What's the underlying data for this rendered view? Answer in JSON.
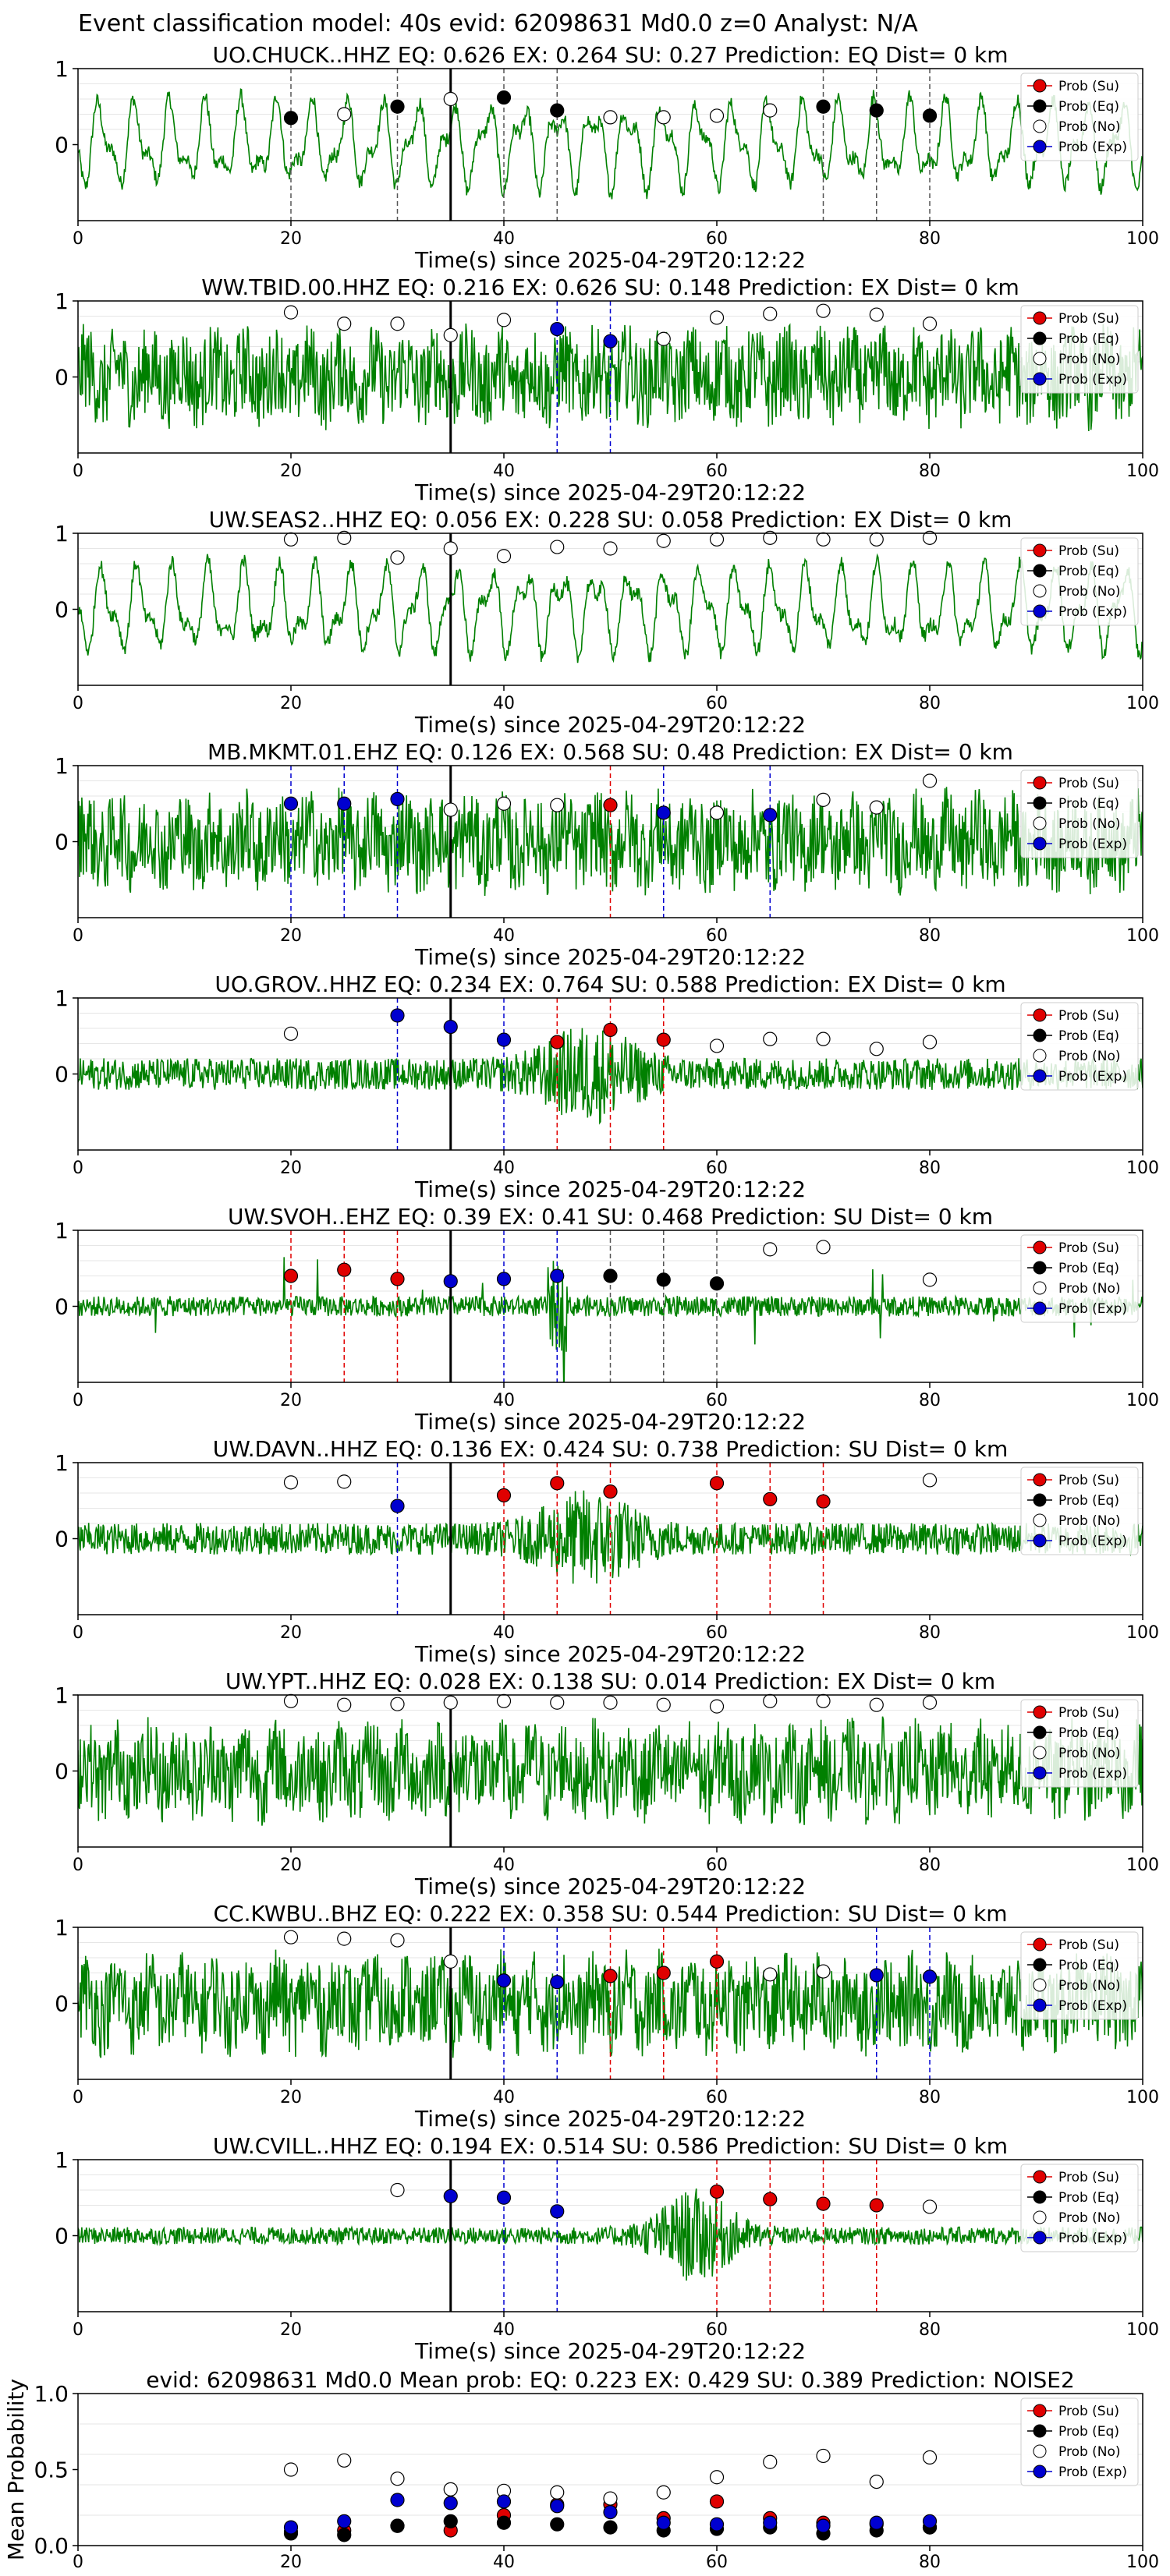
{
  "figure_title": "Event classification model: 40s evid: 62098631 Md0.0 z=0 Analyst: N/A",
  "colors": {
    "waveform": "#008000",
    "su": "#e00000",
    "eq": "#000000",
    "no": "#ffffff",
    "exp": "#0000d0",
    "pick_line": "#000000"
  },
  "legend": [
    "Prob (Su)",
    "Prob (Eq)",
    "Prob (No)",
    "Prob (Exp)"
  ],
  "chart_data": [
    {
      "type": "line",
      "title": "UO.CHUCK..HHZ   EQ: 0.626  EX: 0.264  SU: 0.27   Prediction: EQ    Dist= 0 km",
      "xlabel": "Time(s) since 2025-04-29T20:12:22",
      "xlim": [
        0,
        100
      ],
      "ylim": [
        -1,
        1
      ],
      "xticks": [
        "0",
        "20",
        "40",
        "60",
        "80",
        "100"
      ],
      "yticks": [
        "1",
        "0"
      ],
      "pick_time": 35,
      "waveform_style": "long-period",
      "points": [
        {
          "t": 20,
          "p": 0.35,
          "c": "eq"
        },
        {
          "t": 25,
          "p": 0.4,
          "c": "no"
        },
        {
          "t": 30,
          "p": 0.5,
          "c": "eq"
        },
        {
          "t": 35,
          "p": 0.6,
          "c": "no"
        },
        {
          "t": 40,
          "p": 0.62,
          "c": "eq"
        },
        {
          "t": 45,
          "p": 0.45,
          "c": "eq"
        },
        {
          "t": 50,
          "p": 0.36,
          "c": "no"
        },
        {
          "t": 55,
          "p": 0.36,
          "c": "no"
        },
        {
          "t": 60,
          "p": 0.38,
          "c": "no"
        },
        {
          "t": 65,
          "p": 0.45,
          "c": "no"
        },
        {
          "t": 70,
          "p": 0.5,
          "c": "eq"
        },
        {
          "t": 75,
          "p": 0.45,
          "c": "eq"
        },
        {
          "t": 80,
          "p": 0.38,
          "c": "eq"
        }
      ]
    },
    {
      "type": "line",
      "title": "WW.TBID.00.HHZ   EQ: 0.216  EX: 0.626  SU: 0.148   Prediction: EX    Dist= 0 km",
      "xlabel": "Time(s) since 2025-04-29T20:12:22",
      "xlim": [
        0,
        100
      ],
      "ylim": [
        -1,
        1
      ],
      "xticks": [
        "0",
        "20",
        "40",
        "60",
        "80",
        "100"
      ],
      "yticks": [
        "1",
        "0"
      ],
      "pick_time": 35,
      "waveform_style": "noisy",
      "points": [
        {
          "t": 20,
          "p": 0.85,
          "c": "no"
        },
        {
          "t": 25,
          "p": 0.7,
          "c": "no"
        },
        {
          "t": 30,
          "p": 0.7,
          "c": "no"
        },
        {
          "t": 35,
          "p": 0.55,
          "c": "no"
        },
        {
          "t": 40,
          "p": 0.75,
          "c": "no"
        },
        {
          "t": 45,
          "p": 0.63,
          "c": "exp"
        },
        {
          "t": 50,
          "p": 0.47,
          "c": "exp"
        },
        {
          "t": 55,
          "p": 0.5,
          "c": "no"
        },
        {
          "t": 60,
          "p": 0.78,
          "c": "no"
        },
        {
          "t": 65,
          "p": 0.83,
          "c": "no"
        },
        {
          "t": 70,
          "p": 0.87,
          "c": "no"
        },
        {
          "t": 75,
          "p": 0.82,
          "c": "no"
        },
        {
          "t": 80,
          "p": 0.7,
          "c": "no"
        }
      ]
    },
    {
      "type": "line",
      "title": "UW.SEAS2..HHZ   EQ: 0.056  EX: 0.228  SU: 0.058   Prediction: EX    Dist= 0 km",
      "xlabel": "Time(s) since 2025-04-29T20:12:22",
      "xlim": [
        0,
        100
      ],
      "ylim": [
        -1,
        1
      ],
      "xticks": [
        "0",
        "20",
        "40",
        "60",
        "80",
        "100"
      ],
      "yticks": [
        "1",
        "0"
      ],
      "pick_time": 35,
      "waveform_style": "long-period",
      "points": [
        {
          "t": 20,
          "p": 0.92,
          "c": "no"
        },
        {
          "t": 25,
          "p": 0.94,
          "c": "no"
        },
        {
          "t": 30,
          "p": 0.68,
          "c": "no"
        },
        {
          "t": 35,
          "p": 0.8,
          "c": "no"
        },
        {
          "t": 40,
          "p": 0.7,
          "c": "no"
        },
        {
          "t": 45,
          "p": 0.82,
          "c": "no"
        },
        {
          "t": 50,
          "p": 0.8,
          "c": "no"
        },
        {
          "t": 55,
          "p": 0.9,
          "c": "no"
        },
        {
          "t": 60,
          "p": 0.92,
          "c": "no"
        },
        {
          "t": 65,
          "p": 0.94,
          "c": "no"
        },
        {
          "t": 70,
          "p": 0.92,
          "c": "no"
        },
        {
          "t": 75,
          "p": 0.92,
          "c": "no"
        },
        {
          "t": 80,
          "p": 0.94,
          "c": "no"
        }
      ]
    },
    {
      "type": "line",
      "title": "MB.MKMT.01.EHZ   EQ: 0.126  EX: 0.568  SU: 0.48   Prediction: EX    Dist= 0 km",
      "xlabel": "Time(s) since 2025-04-29T20:12:22",
      "xlim": [
        0,
        100
      ],
      "ylim": [
        -1,
        1
      ],
      "xticks": [
        "0",
        "20",
        "40",
        "60",
        "80",
        "100"
      ],
      "yticks": [
        "1",
        "0"
      ],
      "pick_time": 35,
      "waveform_style": "noisy",
      "points": [
        {
          "t": 20,
          "p": 0.5,
          "c": "exp"
        },
        {
          "t": 25,
          "p": 0.5,
          "c": "exp"
        },
        {
          "t": 30,
          "p": 0.56,
          "c": "exp"
        },
        {
          "t": 35,
          "p": 0.42,
          "c": "no"
        },
        {
          "t": 40,
          "p": 0.5,
          "c": "no"
        },
        {
          "t": 45,
          "p": 0.48,
          "c": "no"
        },
        {
          "t": 50,
          "p": 0.48,
          "c": "su"
        },
        {
          "t": 55,
          "p": 0.38,
          "c": "exp"
        },
        {
          "t": 60,
          "p": 0.38,
          "c": "no"
        },
        {
          "t": 65,
          "p": 0.35,
          "c": "exp"
        },
        {
          "t": 70,
          "p": 0.55,
          "c": "no"
        },
        {
          "t": 75,
          "p": 0.45,
          "c": "no"
        },
        {
          "t": 80,
          "p": 0.8,
          "c": "no"
        }
      ]
    },
    {
      "type": "line",
      "title": "UO.GROV..HHZ   EQ: 0.234  EX: 0.764  SU: 0.588   Prediction: EX    Dist= 0 km",
      "xlabel": "Time(s) since 2025-04-29T20:12:22",
      "xlim": [
        0,
        100
      ],
      "ylim": [
        -1,
        1
      ],
      "xticks": [
        "0",
        "20",
        "40",
        "60",
        "80",
        "100"
      ],
      "yticks": [
        "1",
        "0"
      ],
      "pick_time": 35,
      "waveform_style": "burst",
      "points": [
        {
          "t": 20,
          "p": 0.53,
          "c": "no"
        },
        {
          "t": 30,
          "p": 0.77,
          "c": "exp"
        },
        {
          "t": 35,
          "p": 0.62,
          "c": "exp"
        },
        {
          "t": 40,
          "p": 0.45,
          "c": "exp"
        },
        {
          "t": 45,
          "p": 0.42,
          "c": "su"
        },
        {
          "t": 50,
          "p": 0.58,
          "c": "su"
        },
        {
          "t": 55,
          "p": 0.45,
          "c": "su"
        },
        {
          "t": 60,
          "p": 0.37,
          "c": "no"
        },
        {
          "t": 65,
          "p": 0.46,
          "c": "no"
        },
        {
          "t": 70,
          "p": 0.46,
          "c": "no"
        },
        {
          "t": 75,
          "p": 0.33,
          "c": "no"
        },
        {
          "t": 80,
          "p": 0.42,
          "c": "no"
        }
      ]
    },
    {
      "type": "line",
      "title": "UW.SVOH..EHZ   EQ: 0.39  EX: 0.41  SU: 0.468   Prediction: SU    Dist= 0 km",
      "xlabel": "Time(s) since 2025-04-29T20:12:22",
      "xlim": [
        0,
        100
      ],
      "ylim": [
        -1,
        1
      ],
      "xticks": [
        "0",
        "20",
        "40",
        "60",
        "80",
        "100"
      ],
      "yticks": [
        "1",
        "0"
      ],
      "pick_time": 35,
      "waveform_style": "spiky",
      "points": [
        {
          "t": 20,
          "p": 0.4,
          "c": "su"
        },
        {
          "t": 25,
          "p": 0.48,
          "c": "su"
        },
        {
          "t": 30,
          "p": 0.36,
          "c": "su"
        },
        {
          "t": 35,
          "p": 0.33,
          "c": "exp"
        },
        {
          "t": 40,
          "p": 0.36,
          "c": "exp"
        },
        {
          "t": 45,
          "p": 0.4,
          "c": "exp"
        },
        {
          "t": 50,
          "p": 0.4,
          "c": "eq"
        },
        {
          "t": 55,
          "p": 0.35,
          "c": "eq"
        },
        {
          "t": 60,
          "p": 0.3,
          "c": "eq"
        },
        {
          "t": 65,
          "p": 0.75,
          "c": "no"
        },
        {
          "t": 70,
          "p": 0.78,
          "c": "no"
        },
        {
          "t": 80,
          "p": 0.35,
          "c": "no"
        }
      ]
    },
    {
      "type": "line",
      "title": "UW.DAVN..HHZ   EQ: 0.136  EX: 0.424  SU: 0.738   Prediction: SU    Dist= 0 km",
      "xlabel": "Time(s) since 2025-04-29T20:12:22",
      "xlim": [
        0,
        100
      ],
      "ylim": [
        -1,
        1
      ],
      "xticks": [
        "0",
        "20",
        "40",
        "60",
        "80",
        "100"
      ],
      "yticks": [
        "1",
        "0"
      ],
      "pick_time": 35,
      "waveform_style": "burst",
      "points": [
        {
          "t": 20,
          "p": 0.74,
          "c": "no"
        },
        {
          "t": 25,
          "p": 0.75,
          "c": "no"
        },
        {
          "t": 30,
          "p": 0.43,
          "c": "exp"
        },
        {
          "t": 40,
          "p": 0.57,
          "c": "su"
        },
        {
          "t": 45,
          "p": 0.73,
          "c": "su"
        },
        {
          "t": 50,
          "p": 0.62,
          "c": "su"
        },
        {
          "t": 60,
          "p": 0.73,
          "c": "su"
        },
        {
          "t": 65,
          "p": 0.52,
          "c": "su"
        },
        {
          "t": 70,
          "p": 0.49,
          "c": "su"
        },
        {
          "t": 80,
          "p": 0.77,
          "c": "no"
        }
      ]
    },
    {
      "type": "line",
      "title": "UW.YPT..HHZ   EQ: 0.028  EX: 0.138  SU: 0.014   Prediction: EX    Dist= 0 km",
      "xlabel": "Time(s) since 2025-04-29T20:12:22",
      "xlim": [
        0,
        100
      ],
      "ylim": [
        -1,
        1
      ],
      "xticks": [
        "0",
        "20",
        "40",
        "60",
        "80",
        "100"
      ],
      "yticks": [
        "1",
        "0"
      ],
      "pick_time": 35,
      "waveform_style": "noisy",
      "points": [
        {
          "t": 20,
          "p": 0.92,
          "c": "no"
        },
        {
          "t": 25,
          "p": 0.87,
          "c": "no"
        },
        {
          "t": 30,
          "p": 0.88,
          "c": "no"
        },
        {
          "t": 35,
          "p": 0.9,
          "c": "no"
        },
        {
          "t": 40,
          "p": 0.92,
          "c": "no"
        },
        {
          "t": 45,
          "p": 0.9,
          "c": "no"
        },
        {
          "t": 50,
          "p": 0.9,
          "c": "no"
        },
        {
          "t": 55,
          "p": 0.87,
          "c": "no"
        },
        {
          "t": 60,
          "p": 0.85,
          "c": "no"
        },
        {
          "t": 65,
          "p": 0.92,
          "c": "no"
        },
        {
          "t": 70,
          "p": 0.92,
          "c": "no"
        },
        {
          "t": 75,
          "p": 0.87,
          "c": "no"
        },
        {
          "t": 80,
          "p": 0.9,
          "c": "no"
        }
      ]
    },
    {
      "type": "line",
      "title": "CC.KWBU..BHZ   EQ: 0.222  EX: 0.358  SU: 0.544   Prediction: SU    Dist= 0 km",
      "xlabel": "Time(s) since 2025-04-29T20:12:22",
      "xlim": [
        0,
        100
      ],
      "ylim": [
        -1,
        1
      ],
      "xticks": [
        "0",
        "20",
        "40",
        "60",
        "80",
        "100"
      ],
      "yticks": [
        "1",
        "0"
      ],
      "pick_time": 35,
      "waveform_style": "noisy",
      "points": [
        {
          "t": 20,
          "p": 0.87,
          "c": "no"
        },
        {
          "t": 25,
          "p": 0.85,
          "c": "no"
        },
        {
          "t": 30,
          "p": 0.83,
          "c": "no"
        },
        {
          "t": 35,
          "p": 0.55,
          "c": "no"
        },
        {
          "t": 40,
          "p": 0.3,
          "c": "exp"
        },
        {
          "t": 45,
          "p": 0.28,
          "c": "exp"
        },
        {
          "t": 50,
          "p": 0.36,
          "c": "su"
        },
        {
          "t": 55,
          "p": 0.4,
          "c": "su"
        },
        {
          "t": 60,
          "p": 0.55,
          "c": "su"
        },
        {
          "t": 65,
          "p": 0.38,
          "c": "no"
        },
        {
          "t": 70,
          "p": 0.42,
          "c": "no"
        },
        {
          "t": 75,
          "p": 0.37,
          "c": "exp"
        },
        {
          "t": 80,
          "p": 0.35,
          "c": "exp"
        }
      ]
    },
    {
      "type": "line",
      "title": "UW.CVILL..HHZ   EQ: 0.194  EX: 0.514  SU: 0.586   Prediction: SU    Dist= 0 km",
      "xlabel": "Time(s) since 2025-04-29T20:12:22",
      "xlim": [
        0,
        100
      ],
      "ylim": [
        -1,
        1
      ],
      "xticks": [
        "0",
        "20",
        "40",
        "60",
        "80",
        "100"
      ],
      "yticks": [
        "1",
        "0"
      ],
      "pick_time": 35,
      "waveform_style": "late-burst",
      "points": [
        {
          "t": 30,
          "p": 0.6,
          "c": "no"
        },
        {
          "t": 35,
          "p": 0.52,
          "c": "exp"
        },
        {
          "t": 40,
          "p": 0.5,
          "c": "exp"
        },
        {
          "t": 45,
          "p": 0.32,
          "c": "exp"
        },
        {
          "t": 60,
          "p": 0.58,
          "c": "su"
        },
        {
          "t": 65,
          "p": 0.48,
          "c": "su"
        },
        {
          "t": 70,
          "p": 0.42,
          "c": "su"
        },
        {
          "t": 75,
          "p": 0.4,
          "c": "su"
        },
        {
          "t": 80,
          "p": 0.38,
          "c": "no"
        }
      ]
    },
    {
      "type": "scatter",
      "title": "evid: 62098631   Md0.0   Mean prob:   EQ: 0.223  EX: 0.429  SU: 0.389   Prediction: NOISE2",
      "ylabel": "Mean Probability",
      "xlim": [
        0,
        100
      ],
      "ylim": [
        0,
        1
      ],
      "xticks": [
        "0",
        "20",
        "40",
        "60",
        "80",
        "100"
      ],
      "yticks": [
        "1.0",
        "0.5",
        "0.0"
      ],
      "series": [
        {
          "name": "Prob (Su)",
          "key": "su",
          "x": [
            20,
            25,
            30,
            35,
            40,
            45,
            50,
            55,
            60,
            65,
            70,
            75,
            80
          ],
          "y": [
            0.09,
            0.1,
            0.13,
            0.1,
            0.2,
            0.27,
            0.27,
            0.18,
            0.29,
            0.18,
            0.15,
            0.14,
            0.12
          ]
        },
        {
          "name": "Prob (Eq)",
          "key": "eq",
          "x": [
            20,
            25,
            30,
            35,
            40,
            45,
            50,
            55,
            60,
            65,
            70,
            75,
            80
          ],
          "y": [
            0.08,
            0.07,
            0.13,
            0.16,
            0.15,
            0.14,
            0.12,
            0.1,
            0.11,
            0.12,
            0.08,
            0.1,
            0.12
          ]
        },
        {
          "name": "Prob (No)",
          "key": "no",
          "x": [
            20,
            25,
            30,
            35,
            40,
            45,
            50,
            55,
            60,
            65,
            70,
            75,
            80
          ],
          "y": [
            0.5,
            0.56,
            0.44,
            0.37,
            0.36,
            0.35,
            0.31,
            0.35,
            0.45,
            0.55,
            0.59,
            0.42,
            0.58
          ]
        },
        {
          "name": "Prob (Exp)",
          "key": "exp",
          "x": [
            20,
            25,
            30,
            35,
            40,
            45,
            50,
            55,
            60,
            65,
            70,
            75,
            80
          ],
          "y": [
            0.12,
            0.16,
            0.3,
            0.28,
            0.29,
            0.26,
            0.22,
            0.15,
            0.14,
            0.15,
            0.13,
            0.15,
            0.16
          ]
        }
      ]
    }
  ]
}
